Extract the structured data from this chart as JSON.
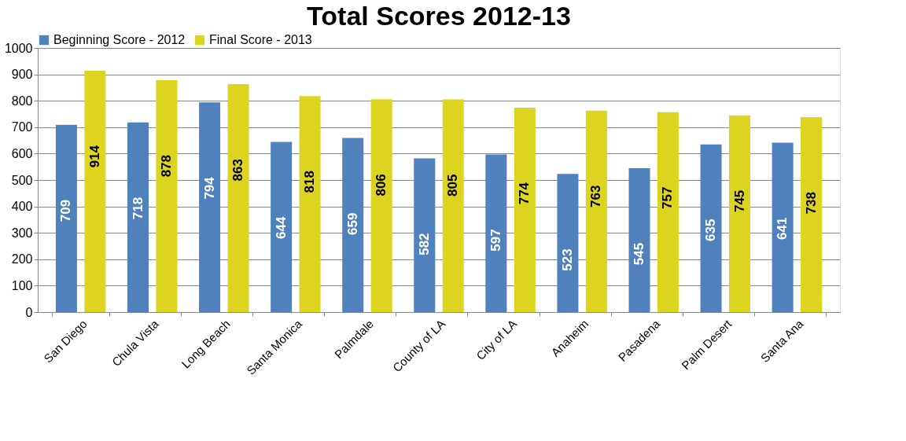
{
  "chart_data": {
    "type": "bar",
    "title": "Total Scores 2012-13",
    "categories": [
      "San Diego",
      "Chula Vista",
      "Long Beach",
      "Santa Monica",
      "Palmdale",
      "County of LA",
      "City of LA",
      "Anaheim",
      "Pasadena",
      "Palm Desert",
      "Santa Ana"
    ],
    "series": [
      {
        "name": "Beginning Score - 2012",
        "color": "#4f81bd",
        "values": [
          709,
          718,
          794,
          644,
          659,
          582,
          597,
          523,
          545,
          635,
          641
        ]
      },
      {
        "name": "Final Score - 2013",
        "color": "#dcd41e",
        "values": [
          914,
          878,
          863,
          818,
          806,
          805,
          774,
          763,
          757,
          745,
          738
        ]
      }
    ],
    "ylim": [
      0,
      1000
    ],
    "yticks": [
      0,
      100,
      200,
      300,
      400,
      500,
      600,
      700,
      800,
      900,
      1000
    ],
    "grid": "y",
    "legend": "top",
    "data_labels": true
  }
}
